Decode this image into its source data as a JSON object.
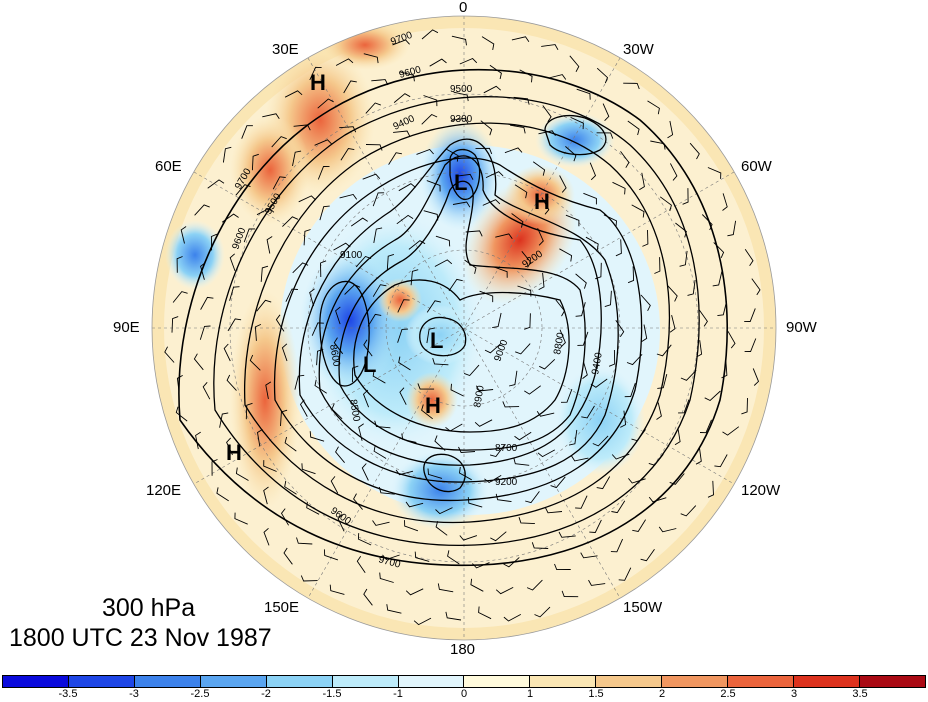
{
  "title_lines": {
    "level": "300 hPa",
    "time": "1800 UTC 23 Nov 1987"
  },
  "longitude_labels": {
    "top": "0",
    "top_left": "30E",
    "top_right": "30W",
    "upper_left": "60E",
    "upper_right": "60W",
    "left": "90E",
    "right": "90W",
    "lower_left": "120E",
    "lower_right": "120W",
    "bottom_left": "150E",
    "bottom_right": "150W",
    "bottom": "180"
  },
  "pressure_systems": [
    {
      "letter": "H"
    },
    {
      "letter": "H"
    },
    {
      "letter": "H"
    },
    {
      "letter": "H"
    },
    {
      "letter": "L"
    },
    {
      "letter": "L"
    },
    {
      "letter": "L"
    }
  ],
  "contour_labels": [
    "9700",
    "9600",
    "9500",
    "9400",
    "9300",
    "9200",
    "9100",
    "9000",
    "8900",
    "8800",
    "8700",
    "8600",
    "8500",
    "9700",
    "9600",
    "9500",
    "9400",
    "9200",
    "9700",
    "9600"
  ],
  "colorbar": {
    "colors": [
      "#0a0adc",
      "#1e46e6",
      "#3c82eb",
      "#5aa5f0",
      "#8cd2f5",
      "#bdebfa",
      "#e1f5fc",
      "#fffadc",
      "#fae6b4",
      "#f5c88c",
      "#f09660",
      "#eb643c",
      "#dc321e",
      "#aa0a14"
    ],
    "ticks": [
      "-3.5",
      "-3",
      "-2.5",
      "-2",
      "-1.5",
      "-1",
      "0",
      "1",
      "1.5",
      "2",
      "2.5",
      "3",
      "3.5"
    ]
  }
}
